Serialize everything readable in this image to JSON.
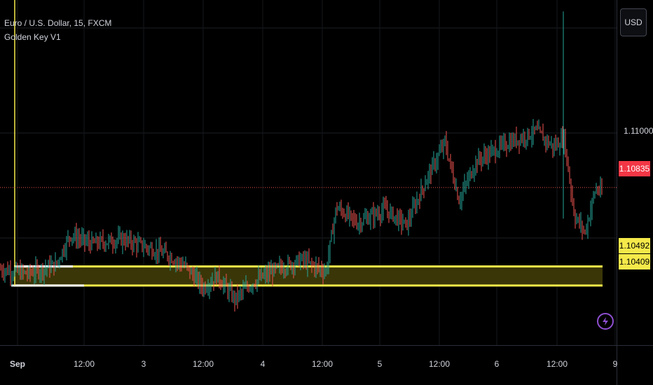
{
  "header": {
    "symbol_line": "Euro / U.S. Dollar, 15, FXCM",
    "indicator_name": "Golden Key V1"
  },
  "currency_button": "USD",
  "price_axis": {
    "tick": "1.11000",
    "last_price": "1.10835",
    "zone_top": "1.10492",
    "zone_bottom": "1.10409"
  },
  "colors": {
    "background": "#000000",
    "up": "#26a69a",
    "down": "#ef5350",
    "zone": "#f5e94a",
    "zone_fill": "#3a3608",
    "last_price_tag": "#f23645",
    "alert_ring": "#8e4fd1"
  },
  "chart_data": {
    "type": "candlestick",
    "title": "Euro / U.S. Dollar, 15, FXCM",
    "ylim": [
      1.1015,
      1.1165
    ],
    "x_ticks": [
      "Sep",
      "12:00",
      "3",
      "12:00",
      "4",
      "12:00",
      "5",
      "12:00",
      "6",
      "12:00",
      "9"
    ],
    "last_price": 1.10835,
    "zone": {
      "top": 1.10492,
      "bottom": 1.10409
    },
    "grid": true,
    "close_path": [
      [
        0,
        1.1048
      ],
      [
        40,
        1.1046
      ],
      [
        80,
        1.105
      ],
      [
        100,
        1.1063
      ],
      [
        130,
        1.1059
      ],
      [
        175,
        1.1061
      ],
      [
        205,
        1.1058
      ],
      [
        240,
        1.1054
      ],
      [
        265,
        1.1049
      ],
      [
        290,
        1.104
      ],
      [
        310,
        1.1045
      ],
      [
        335,
        1.1035
      ],
      [
        360,
        1.1042
      ],
      [
        395,
        1.1048
      ],
      [
        430,
        1.1052
      ],
      [
        465,
        1.1047
      ],
      [
        480,
        1.1075
      ],
      [
        510,
        1.1068
      ],
      [
        550,
        1.1074
      ],
      [
        580,
        1.1067
      ],
      [
        610,
        1.1088
      ],
      [
        635,
        1.1103
      ],
      [
        655,
        1.1078
      ],
      [
        680,
        1.1095
      ],
      [
        720,
        1.1102
      ],
      [
        765,
        1.1108
      ],
      [
        790,
        1.1101
      ],
      [
        805,
        1.1105
      ],
      [
        820,
        1.1071
      ],
      [
        835,
        1.1064
      ],
      [
        850,
        1.1083
      ],
      [
        860,
        1.1081
      ]
    ]
  }
}
